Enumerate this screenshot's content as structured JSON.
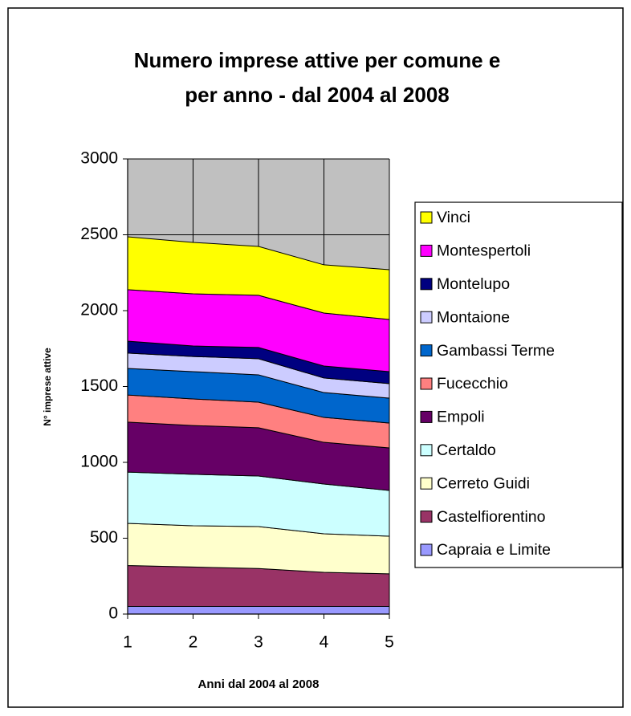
{
  "chart_data": {
    "type": "stacked_area",
    "title": "Numero imprese attive per comune e per anno - dal 2004 al 2008",
    "x_label": "Anni dal 2004 al 2008",
    "y_label": "N° imprese attive",
    "x": [
      1,
      2,
      3,
      4,
      5
    ],
    "xlim": [
      1,
      5
    ],
    "xticks": [
      1,
      2,
      3,
      4,
      5
    ],
    "ylim": [
      0,
      3000
    ],
    "yticks": [
      0,
      500,
      1000,
      1500,
      2000,
      2500,
      3000
    ],
    "grid": true,
    "legend": "right",
    "plot_background": "#c0c0c0",
    "series": [
      {
        "name": "Capraia e Limite",
        "color": "#9999ff",
        "values": [
          50,
          50,
          50,
          50,
          50
        ]
      },
      {
        "name": "Castelfiorentino",
        "color": "#993366",
        "values": [
          270,
          260,
          250,
          225,
          215
        ]
      },
      {
        "name": "Cerreto Guidi",
        "color": "#ffffcc",
        "values": [
          278,
          272,
          277,
          254,
          248
        ]
      },
      {
        "name": "Certaldo",
        "color": "#ccffff",
        "values": [
          338,
          339,
          333,
          328,
          302
        ]
      },
      {
        "name": "Empoli",
        "color": "#660066",
        "values": [
          329,
          322,
          318,
          275,
          280
        ]
      },
      {
        "name": "Fucecchio",
        "color": "#ff8080",
        "values": [
          179,
          175,
          169,
          164,
          164
        ]
      },
      {
        "name": "Gambassi Terme",
        "color": "#0066cc",
        "values": [
          175,
          180,
          180,
          164,
          164
        ]
      },
      {
        "name": "Montaione",
        "color": "#ccccff",
        "values": [
          101,
          100,
          106,
          96,
          96
        ]
      },
      {
        "name": "Montelupo",
        "color": "#000080",
        "values": [
          79,
          69,
          74,
          79,
          79
        ]
      },
      {
        "name": "Montespertoli",
        "color": "#ff00ff",
        "values": [
          339,
          344,
          344,
          349,
          344
        ]
      },
      {
        "name": "Vinci",
        "color": "#ffff00",
        "values": [
          349,
          339,
          322,
          318,
          328
        ]
      }
    ]
  }
}
